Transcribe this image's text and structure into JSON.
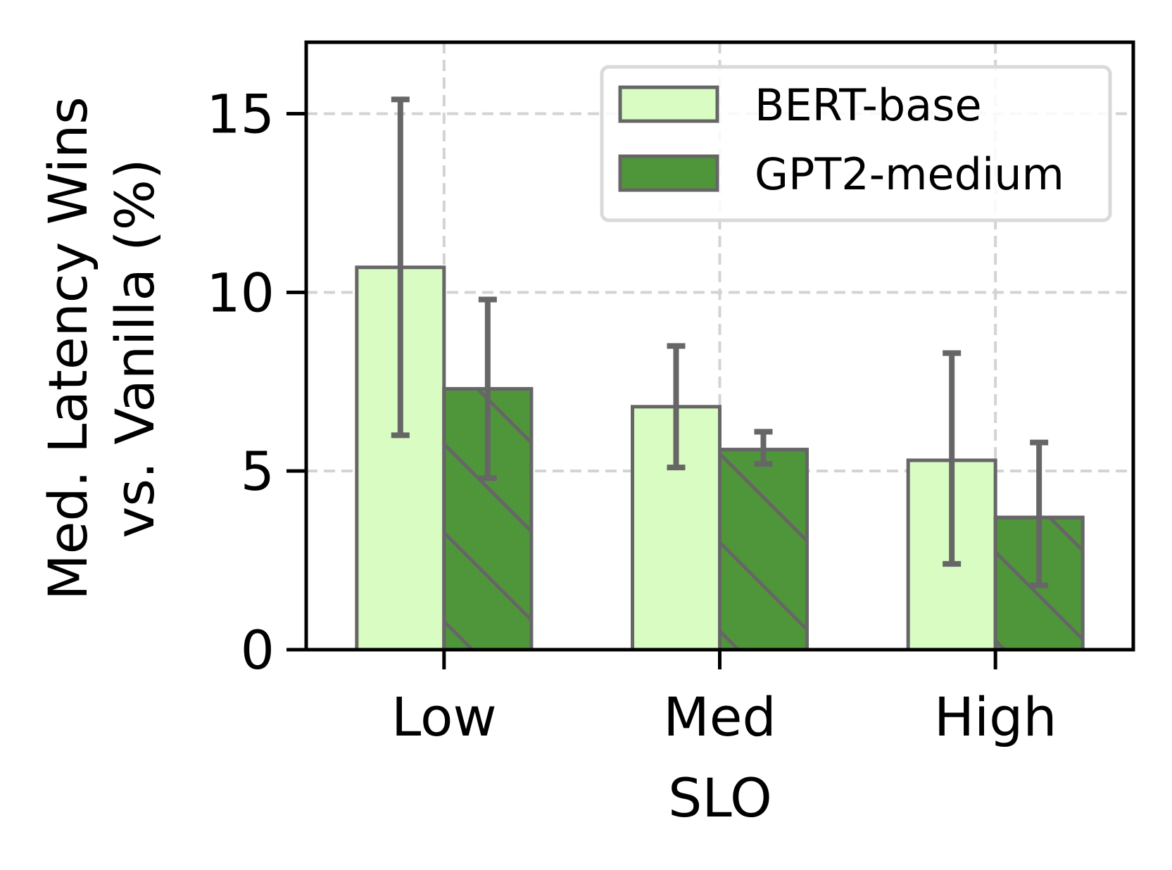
{
  "chart_data": {
    "type": "bar",
    "title": "",
    "xlabel": "SLO",
    "ylabel_lines": [
      "Med. Latency Wins",
      "vs. Vanilla (%)"
    ],
    "categories": [
      "Low",
      "Med",
      "High"
    ],
    "ylim": [
      0,
      17
    ],
    "yticks": [
      0,
      5,
      10,
      15
    ],
    "grid": true,
    "legend_position": "top-right",
    "series": [
      {
        "name": "BERT-base",
        "values": [
          10.7,
          6.8,
          5.3
        ],
        "err_low": [
          6.0,
          5.1,
          2.4
        ],
        "err_high": [
          15.4,
          8.5,
          8.3
        ],
        "color": "#d9fcc2",
        "hatch": false
      },
      {
        "name": "GPT2-medium",
        "values": [
          7.3,
          5.6,
          3.7
        ],
        "err_low": [
          4.8,
          5.2,
          1.8
        ],
        "err_high": [
          9.8,
          6.1,
          5.8
        ],
        "color": "#4f963b",
        "hatch": true
      }
    ],
    "edge_color": "#666666",
    "grid_color": "#d3d3d3"
  }
}
